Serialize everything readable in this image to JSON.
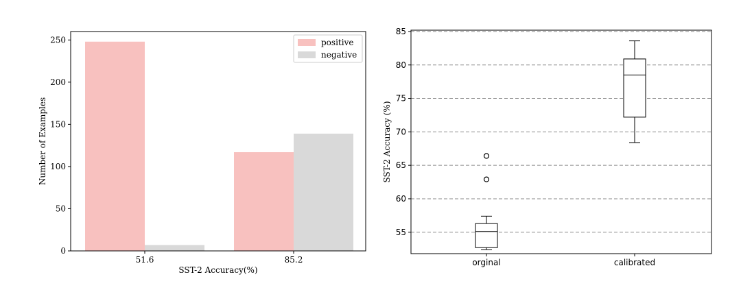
{
  "chart_data": [
    {
      "type": "bar",
      "categories": [
        "51.6",
        "85.2"
      ],
      "series": [
        {
          "name": "positive",
          "values": [
            248,
            117
          ],
          "color": "#f8c1bf"
        },
        {
          "name": "negative",
          "values": [
            7,
            139
          ],
          "color": "#d9d9d9"
        }
      ],
      "xlabel": "SST-2 Accuracy(%)",
      "ylabel": "Number of Examples",
      "ylim": [
        0,
        260
      ],
      "yticks": [
        "0",
        "50",
        "100",
        "150",
        "200",
        "250"
      ],
      "legend_position": "top-right",
      "grid": false
    },
    {
      "type": "box",
      "categories": [
        "orginal",
        "calibrated"
      ],
      "boxes": [
        {
          "whislo": 52.4,
          "q1": 52.7,
          "med": 55.1,
          "q3": 56.3,
          "whishi": 57.4,
          "fliers": [
            62.9,
            66.4
          ]
        },
        {
          "whislo": 68.4,
          "q1": 72.2,
          "med": 78.5,
          "q3": 80.9,
          "whishi": 83.6,
          "fliers": []
        }
      ],
      "ylabel": "SST-2 Accuracy (%)",
      "ylim": [
        51.8,
        85.2
      ],
      "yticks": [
        "55",
        "60",
        "65",
        "70",
        "75",
        "80",
        "85"
      ],
      "grid": "horizontal-dashed"
    }
  ]
}
